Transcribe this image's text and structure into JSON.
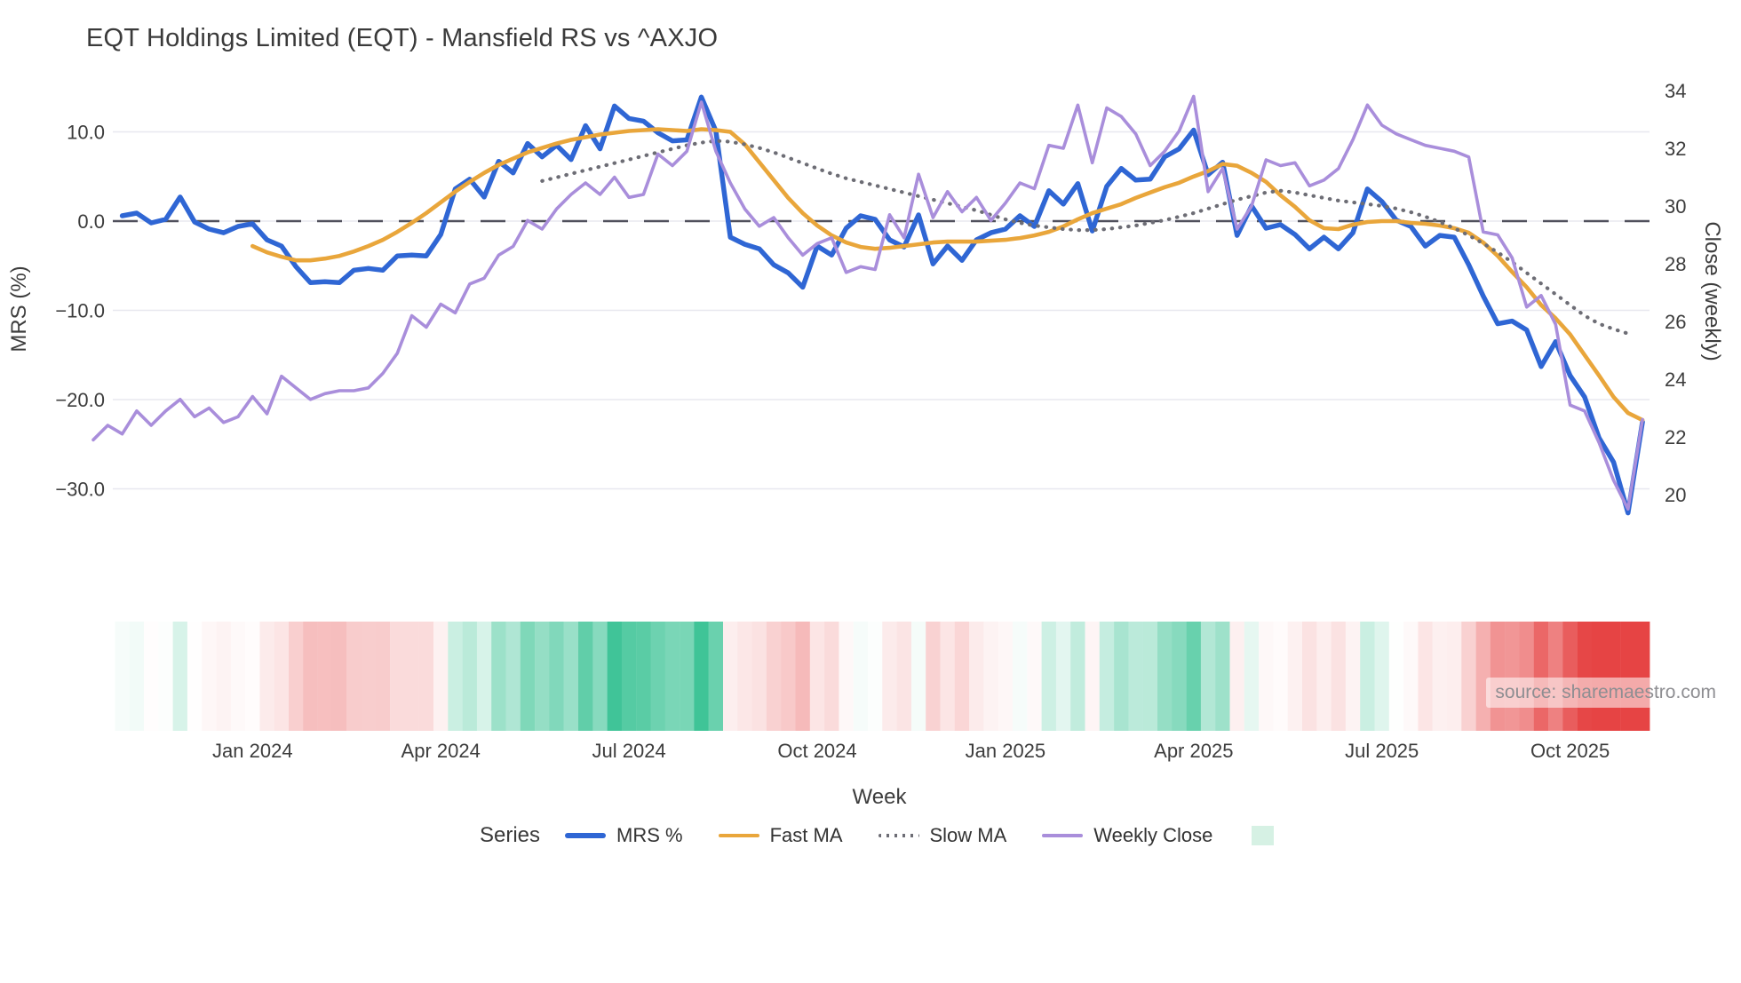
{
  "title": "EQT Holdings Limited (EQT) - Mansfield RS vs ^AXJO",
  "source_note": "source: sharemaestro.com",
  "chart_data": {
    "type": "line",
    "title": "EQT Holdings Limited (EQT) - Mansfield RS vs ^AXJO",
    "x_axis": {
      "label": "Week",
      "tick_labels": [
        "Jan 2024",
        "Apr 2024",
        "Jul 2024",
        "Oct 2024",
        "Jan 2025",
        "Apr 2025",
        "Jul 2025",
        "Oct 2025"
      ],
      "tick_week_index": [
        11,
        24,
        37,
        50,
        63,
        76,
        89,
        102
      ],
      "weeks_total": 108
    },
    "y_left": {
      "label": "MRS (%)",
      "ticks": [
        10,
        0,
        -10,
        -20,
        -30
      ],
      "tick_labels": [
        "10.0",
        "0.0",
        "−10.0",
        "−20.0",
        "−30.0"
      ],
      "zero_reference_line": true
    },
    "y_right": {
      "label": "Close (weekly)",
      "ticks": [
        34,
        32,
        30,
        28,
        26,
        24,
        22,
        20
      ],
      "tick_labels": [
        "34",
        "32",
        "30",
        "28",
        "26",
        "24",
        "22",
        "20"
      ]
    },
    "legend": {
      "title": "Series",
      "heatmap_swatch_color": "#d6f1e4"
    },
    "colors": {
      "mrs": "#2f66d4",
      "fast_ma": "#e9a63b",
      "slow_ma": "#6d6d75",
      "weekly_close": "#a98edb",
      "zero_line": "#50505c",
      "grid": "#e8e8ef"
    },
    "heatmap": {
      "based_on": "MRS %",
      "pos_color": "#3fc497",
      "neg_color": "#e64444",
      "pos_full_scale": 13,
      "neg_full_scale": 20
    },
    "series": [
      {
        "name": "MRS %",
        "axis": "left",
        "color": "#2f66d4",
        "width": 5.5,
        "style": "solid",
        "values": [
          null,
          null,
          0.6,
          0.9,
          -0.2,
          0.2,
          2.7,
          -0.1,
          -0.9,
          -1.3,
          -0.6,
          -0.3,
          -2.1,
          -2.8,
          -5.1,
          -6.9,
          -6.8,
          -6.9,
          -5.5,
          -5.3,
          -5.5,
          -3.9,
          -3.8,
          -3.9,
          -1.5,
          3.6,
          4.7,
          2.7,
          6.7,
          5.4,
          8.7,
          7.2,
          8.5,
          6.9,
          10.7,
          8.1,
          12.9,
          11.5,
          11.2,
          9.9,
          9.0,
          9.1,
          13.9,
          10.1,
          -1.8,
          -2.6,
          -3.1,
          -4.9,
          -5.8,
          -7.4,
          -2.8,
          -3.8,
          -0.8,
          0.6,
          0.2,
          -2.1,
          -2.9,
          0.7,
          -4.8,
          -2.8,
          -4.4,
          -2.1,
          -1.3,
          -0.9,
          0.6,
          -0.6,
          3.4,
          1.9,
          4.2,
          -1.1,
          3.9,
          5.9,
          4.6,
          4.7,
          7.2,
          8.1,
          10.2,
          5.2,
          6.6,
          -1.6,
          1.7,
          -0.8,
          -0.4,
          -1.5,
          -3.1,
          -1.8,
          -3.1,
          -1.3,
          3.6,
          2.2,
          0.1,
          -0.6,
          -2.8,
          -1.6,
          -1.8,
          -4.9,
          -8.4,
          -11.5,
          -11.2,
          -12.2,
          -16.3,
          -13.5,
          -17.3,
          -19.7,
          -24.3,
          -27.0,
          -32.7,
          -22.5
        ]
      },
      {
        "name": "Fast MA",
        "axis": "left",
        "color": "#e9a63b",
        "width": 4.6,
        "style": "solid",
        "values": [
          null,
          null,
          null,
          null,
          null,
          null,
          null,
          null,
          null,
          null,
          null,
          -2.8,
          -3.5,
          -4.0,
          -4.4,
          -4.4,
          -4.2,
          -3.9,
          -3.4,
          -2.8,
          -2.1,
          -1.2,
          -0.2,
          0.9,
          2.1,
          3.3,
          4.4,
          5.4,
          6.3,
          7.0,
          7.7,
          8.2,
          8.7,
          9.1,
          9.4,
          9.7,
          9.9,
          10.1,
          10.2,
          10.3,
          10.2,
          10.1,
          10.3,
          10.2,
          10.0,
          8.6,
          6.6,
          4.6,
          2.6,
          0.9,
          -0.5,
          -1.6,
          -2.4,
          -2.9,
          -3.1,
          -3.0,
          -2.8,
          -2.6,
          -2.4,
          -2.3,
          -2.3,
          -2.3,
          -2.2,
          -2.1,
          -1.9,
          -1.6,
          -1.2,
          -0.6,
          0.2,
          0.9,
          1.4,
          1.9,
          2.6,
          3.2,
          3.8,
          4.3,
          5.0,
          5.6,
          6.4,
          6.2,
          5.4,
          4.4,
          2.9,
          1.6,
          0.1,
          -0.8,
          -0.9,
          -0.4,
          -0.1,
          0.0,
          0.0,
          -0.2,
          -0.3,
          -0.5,
          -0.8,
          -1.3,
          -2.4,
          -3.9,
          -5.7,
          -7.4,
          -9.4,
          -10.9,
          -12.7,
          -15.0,
          -17.3,
          -19.7,
          -21.5,
          -22.3
        ]
      },
      {
        "name": "Slow MA",
        "axis": "left",
        "color": "#6d6d75",
        "width": 4.2,
        "style": "dotted",
        "values": [
          null,
          null,
          null,
          null,
          null,
          null,
          null,
          null,
          null,
          null,
          null,
          null,
          null,
          null,
          null,
          null,
          null,
          null,
          null,
          null,
          null,
          null,
          null,
          null,
          null,
          null,
          null,
          null,
          null,
          null,
          null,
          4.5,
          4.9,
          5.3,
          5.7,
          6.1,
          6.5,
          6.9,
          7.3,
          7.7,
          8.1,
          8.5,
          8.8,
          9.0,
          8.9,
          8.6,
          8.2,
          7.7,
          7.1,
          6.5,
          5.9,
          5.3,
          4.8,
          4.4,
          4.0,
          3.6,
          3.2,
          2.8,
          2.4,
          2.0,
          1.6,
          1.2,
          0.7,
          0.2,
          -0.2,
          -0.5,
          -0.7,
          -0.9,
          -1.0,
          -1.0,
          -0.9,
          -0.7,
          -0.5,
          -0.2,
          0.1,
          0.5,
          0.9,
          1.4,
          1.9,
          2.4,
          2.8,
          3.2,
          3.4,
          3.2,
          2.9,
          2.6,
          2.3,
          2.1,
          1.9,
          1.7,
          1.4,
          1.0,
          0.5,
          -0.1,
          -0.8,
          -1.6,
          -2.5,
          -3.5,
          -4.6,
          -5.8,
          -7.0,
          -8.2,
          -9.4,
          -10.6,
          -11.5,
          -12.1,
          -12.6,
          null
        ]
      },
      {
        "name": "Weekly Close",
        "axis": "right",
        "color": "#a98edb",
        "width": 3.6,
        "style": "solid",
        "values": [
          21.9,
          22.4,
          22.1,
          22.9,
          22.4,
          22.9,
          23.3,
          22.7,
          23.0,
          22.5,
          22.7,
          23.4,
          22.8,
          24.1,
          23.7,
          23.3,
          23.5,
          23.6,
          23.6,
          23.7,
          24.2,
          24.9,
          26.2,
          25.8,
          26.6,
          26.3,
          27.3,
          27.5,
          28.3,
          28.6,
          29.5,
          29.2,
          29.9,
          30.4,
          30.8,
          30.4,
          31.0,
          30.3,
          30.4,
          31.8,
          31.4,
          31.9,
          33.6,
          31.9,
          30.8,
          29.9,
          29.3,
          29.6,
          28.9,
          28.3,
          28.7,
          28.9,
          27.7,
          27.9,
          27.8,
          29.7,
          28.9,
          31.1,
          29.6,
          30.5,
          29.8,
          30.3,
          29.5,
          30.1,
          30.8,
          30.6,
          32.1,
          32.0,
          33.5,
          31.5,
          33.4,
          33.1,
          32.5,
          31.4,
          31.9,
          32.6,
          33.8,
          30.5,
          31.3,
          29.2,
          30.0,
          31.6,
          31.4,
          31.5,
          30.7,
          30.9,
          31.3,
          32.3,
          33.5,
          32.8,
          32.5,
          32.3,
          32.1,
          32.0,
          31.9,
          31.7,
          29.1,
          29.0,
          28.2,
          26.5,
          26.9,
          25.9,
          23.1,
          22.9,
          21.8,
          20.5,
          19.5,
          22.6
        ]
      }
    ]
  }
}
